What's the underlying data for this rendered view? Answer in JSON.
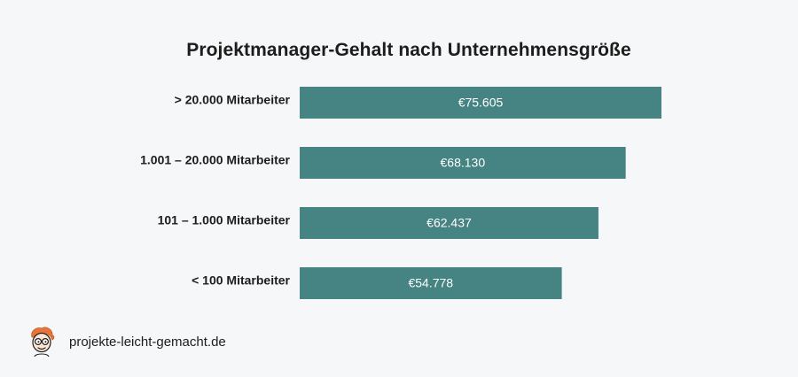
{
  "chart_data": {
    "type": "bar",
    "orientation": "horizontal",
    "title": "Projektmanager-Gehalt nach Unternehmensgröße",
    "categories": [
      "> 20.000 Mitarbeiter",
      "1.001 – 20.000 Mitarbeiter",
      "101 – 1.000 Mitarbeiter",
      "< 100 Mitarbeiter"
    ],
    "values": [
      75605,
      68130,
      62437,
      54778
    ],
    "value_labels": [
      "€75.605",
      "€68.130",
      "€62.437",
      "€54.778"
    ],
    "xlim": [
      0,
      75605
    ],
    "bar_color": "#468383",
    "grid": false,
    "legend": "none"
  },
  "footer": {
    "logo_icon": "cartoon-face-icon",
    "site": "projekte-leicht-gemacht.de"
  },
  "colors": {
    "background": "#f5f7f8",
    "text": "#1d1d1d",
    "value_text": "#ffffff"
  }
}
